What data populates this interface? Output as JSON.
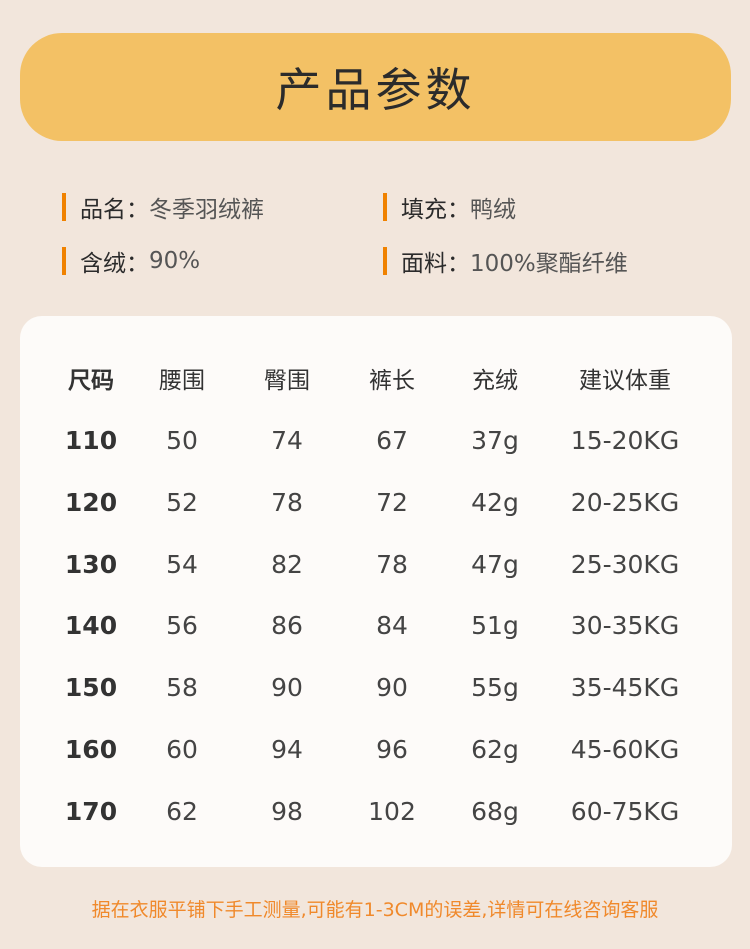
{
  "banner": {
    "title": "产品参数"
  },
  "specs": [
    {
      "key": "品名：",
      "value": "冬季羽绒裤"
    },
    {
      "key": "填充：",
      "value": "鸭绒"
    },
    {
      "key": "含绒：",
      "value": "90%"
    },
    {
      "key": "面料：",
      "value": "100%聚酯纤维"
    }
  ],
  "table": {
    "headers": [
      "尺码",
      "腰围",
      "臀围",
      "裤长",
      "充绒",
      "建议体重"
    ],
    "rows": [
      [
        "110",
        "50",
        "74",
        "67",
        "37g",
        "15-20KG"
      ],
      [
        "120",
        "52",
        "78",
        "72",
        "42g",
        "20-25KG"
      ],
      [
        "130",
        "54",
        "82",
        "78",
        "47g",
        "25-30KG"
      ],
      [
        "140",
        "56",
        "86",
        "84",
        "51g",
        "30-35KG"
      ],
      [
        "150",
        "58",
        "90",
        "90",
        "55g",
        "35-45KG"
      ],
      [
        "160",
        "60",
        "94",
        "96",
        "62g",
        "45-60KG"
      ],
      [
        "170",
        "62",
        "98",
        "102",
        "68g",
        "60-75KG"
      ]
    ]
  },
  "footer": "据在衣服平铺下手工测量,可能有1-3CM的误差,详情可在线咨询客服",
  "colors": {
    "background": "#f2e6dc",
    "banner": "#f3c165",
    "accent": "#f08200",
    "footer_text": "#f0892b"
  }
}
